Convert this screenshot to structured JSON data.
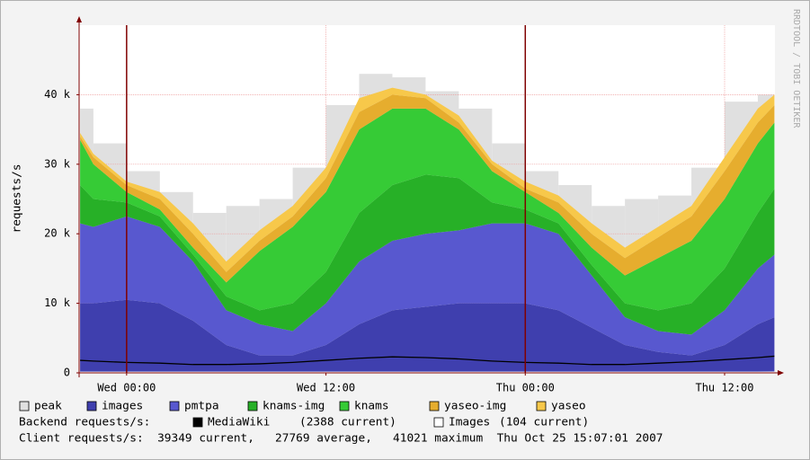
{
  "chart_data": {
    "type": "area",
    "y_label": "requests/s",
    "watermark": "RRDTOOL / TOBI OETIKER",
    "x": [
      -2.8,
      -2,
      0,
      2,
      4,
      6,
      8,
      10,
      12,
      14,
      16,
      18,
      20,
      22,
      24,
      26,
      28,
      30,
      32,
      34,
      36,
      38,
      39
    ],
    "xlim": [
      -2.86,
      39.03
    ],
    "xticks": [
      {
        "value": 0,
        "label": "Wed 00:00"
      },
      {
        "value": 12,
        "label": "Wed 12:00"
      },
      {
        "value": 24,
        "label": "Thu 00:00"
      },
      {
        "value": 36,
        "label": "Thu 12:00"
      }
    ],
    "ylim": [
      0,
      50000
    ],
    "yticks": [
      0,
      {
        "value": 10000,
        "label": "10 k"
      },
      {
        "value": 20000,
        "label": "20 k"
      },
      {
        "value": 30000,
        "label": "30 k"
      },
      {
        "value": 40000,
        "label": "40 k"
      }
    ],
    "grid": true,
    "vrules": [
      0,
      24
    ],
    "series": [
      {
        "name": "peak",
        "kind": "step",
        "color": "#e0e0e0",
        "values": [
          38000,
          33000,
          29000,
          26000,
          23000,
          24000,
          25000,
          29500,
          38500,
          43000,
          42500,
          40500,
          38000,
          33000,
          29000,
          27000,
          24000,
          25000,
          25500,
          29500,
          39000,
          40000,
          null
        ]
      },
      {
        "name": "images",
        "kind": "area",
        "color": "#3f3fae",
        "values": [
          10000,
          10000,
          10500,
          10000,
          7500,
          4000,
          2500,
          2500,
          4000,
          7000,
          9000,
          9500,
          10000,
          10000,
          10000,
          9000,
          6500,
          4000,
          3000,
          2500,
          4000,
          7000,
          8000
        ]
      },
      {
        "name": "pmtpa",
        "kind": "area",
        "color": "#5858cf",
        "values": [
          11500,
          11000,
          12000,
          11000,
          8500,
          5000,
          4500,
          3500,
          6000,
          9000,
          10000,
          10500,
          10500,
          11500,
          11500,
          11000,
          7500,
          4000,
          3000,
          3000,
          5000,
          8000,
          9000
        ]
      },
      {
        "name": "knams-img",
        "kind": "area",
        "color": "#27b027",
        "values": [
          5500,
          4000,
          2000,
          1500,
          1000,
          2000,
          2000,
          4000,
          4500,
          7000,
          8000,
          8500,
          7500,
          3000,
          2000,
          1500,
          1500,
          2000,
          3000,
          4500,
          6000,
          8000,
          9500
        ]
      },
      {
        "name": "knams",
        "kind": "area",
        "color": "#36cb36",
        "values": [
          6500,
          5000,
          1500,
          1000,
          1000,
          2000,
          8500,
          11000,
          11500,
          12000,
          11000,
          9500,
          7000,
          4500,
          2500,
          1500,
          2500,
          4000,
          7500,
          9000,
          10000,
          10000,
          9500
        ]
      },
      {
        "name": "yaseo-img",
        "kind": "area",
        "color": "#e6ad2e",
        "values": [
          500,
          1000,
          1000,
          1500,
          2000,
          1500,
          1500,
          1500,
          2000,
          2500,
          2000,
          1500,
          1000,
          1000,
          500,
          1500,
          2000,
          2500,
          3000,
          3500,
          4000,
          3000,
          2500
        ]
      },
      {
        "name": "yaseo",
        "kind": "area",
        "color": "#f7c84a",
        "values": [
          500,
          500,
          500,
          1000,
          1500,
          1500,
          1500,
          1500,
          1500,
          2000,
          1000,
          500,
          1000,
          500,
          1000,
          1000,
          1500,
          1500,
          1500,
          1500,
          2000,
          2000,
          1500
        ]
      },
      {
        "name": "MediaWiki",
        "kind": "line",
        "color": "#000000",
        "label": "(2388 current)",
        "values": [
          1800,
          1700,
          1500,
          1400,
          1200,
          1200,
          1300,
          1500,
          1800,
          2100,
          2300,
          2200,
          2000,
          1700,
          1500,
          1400,
          1200,
          1200,
          1400,
          1600,
          1900,
          2200,
          2400
        ]
      },
      {
        "name": "Images",
        "kind": "line",
        "color": "#ffffff",
        "label": "(104 current)",
        "values": [
          100,
          100,
          100,
          100,
          100,
          100,
          100,
          100,
          100,
          100,
          100,
          100,
          100,
          100,
          100,
          100,
          100,
          100,
          100,
          100,
          100,
          100,
          104
        ]
      }
    ],
    "backend_label": "Backend requests/s:",
    "footer": "Client requests/s:  39349 current,   27769 average,   41021 maximum  Thu Oct 25 15:07:01 2007"
  }
}
